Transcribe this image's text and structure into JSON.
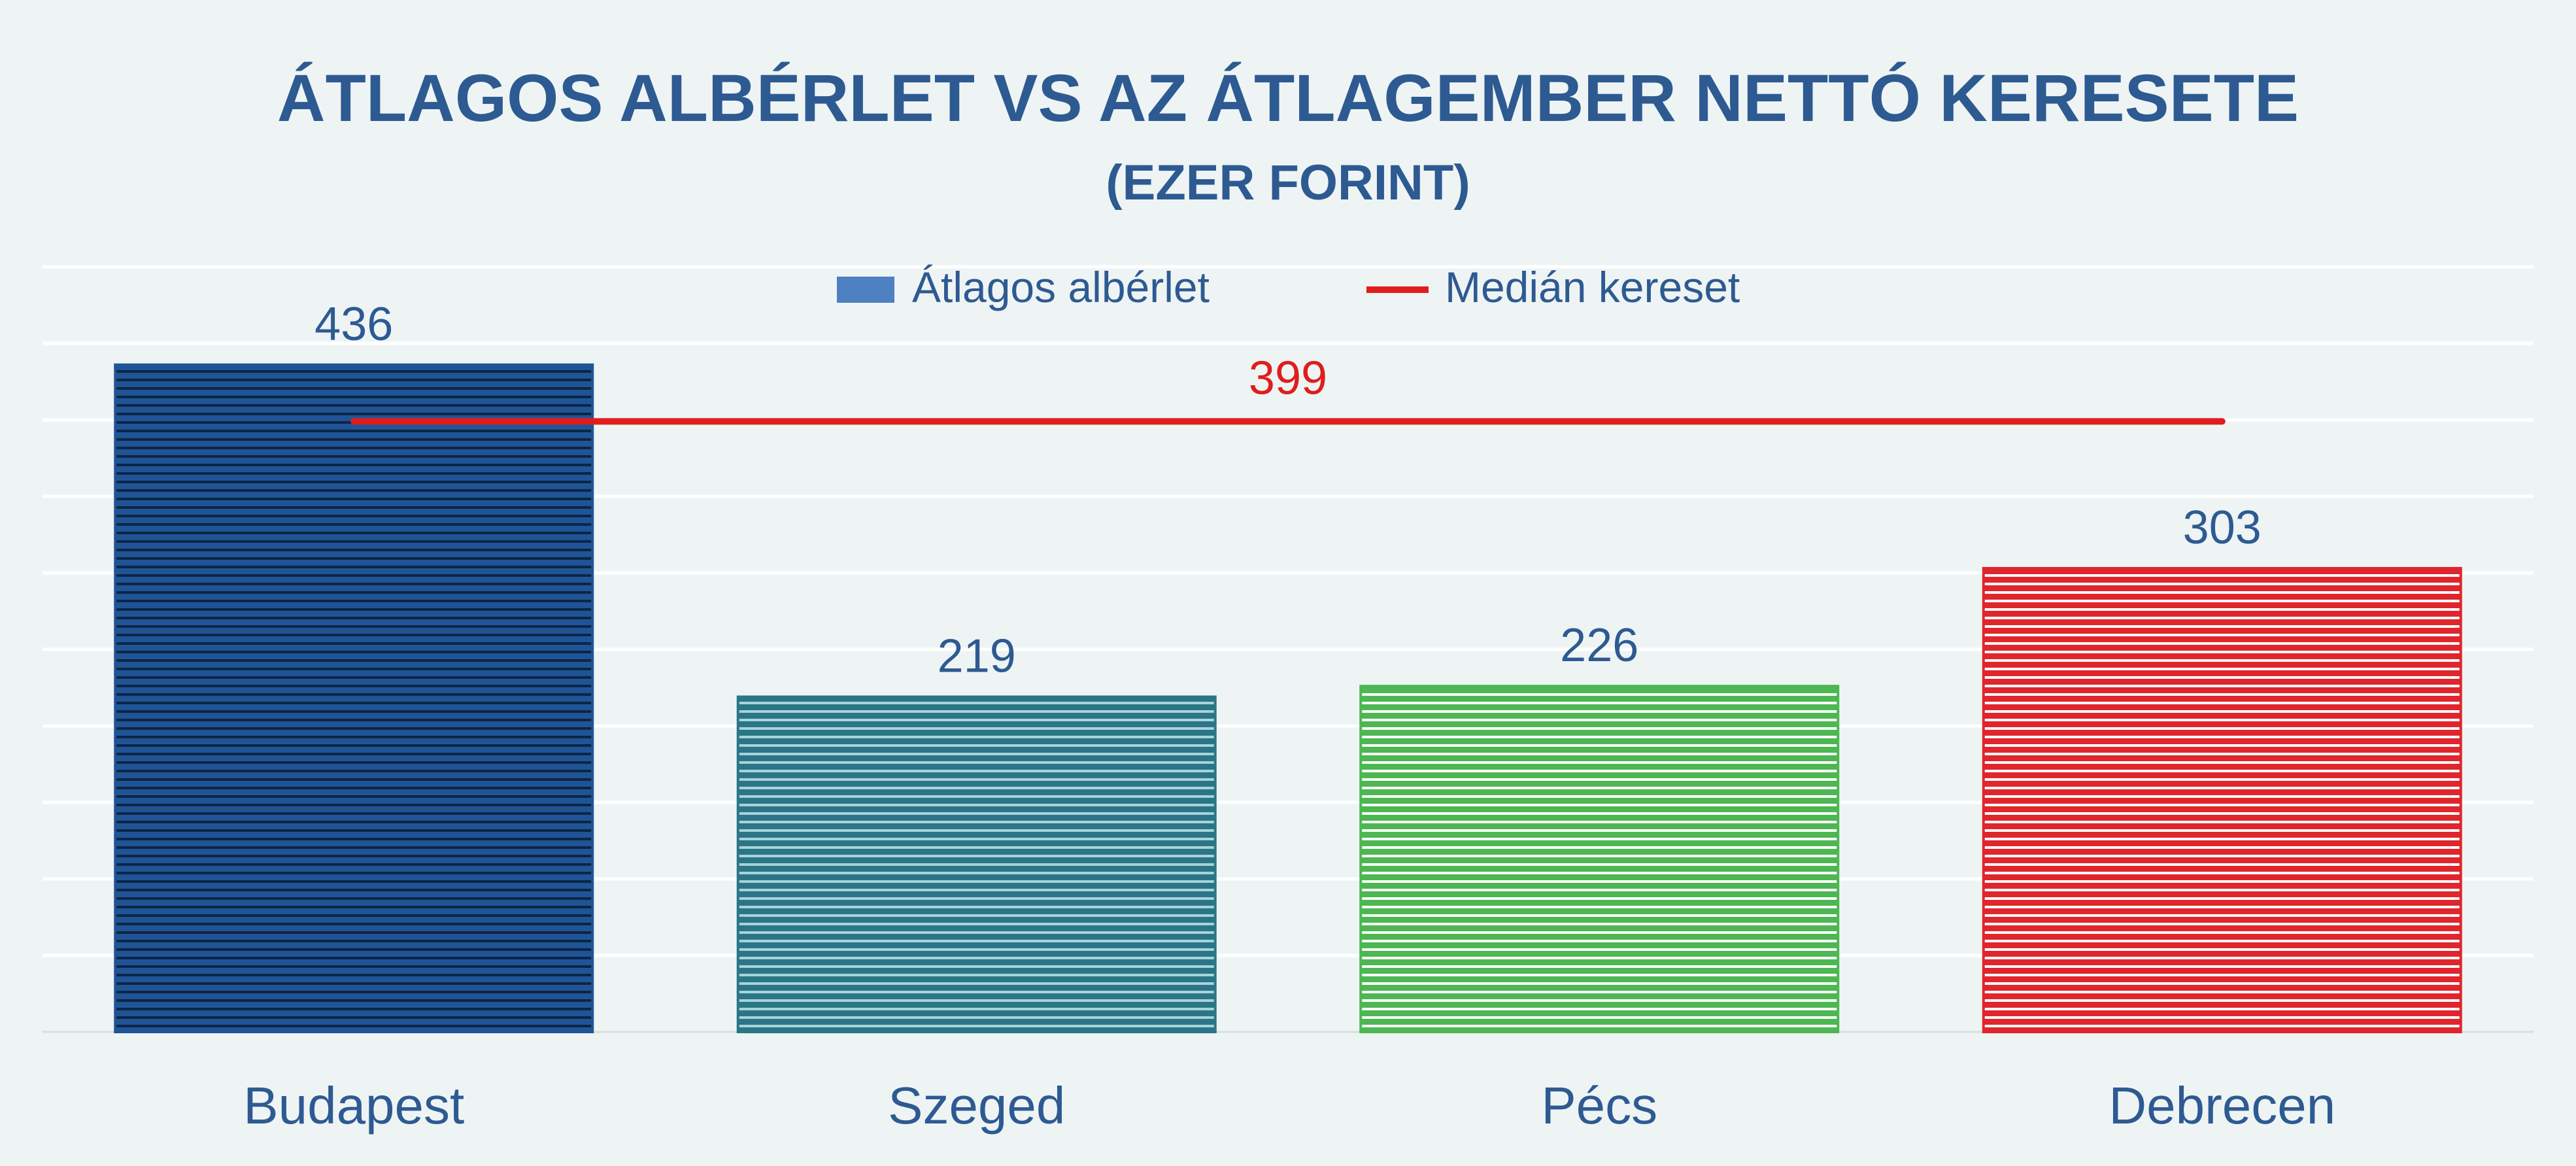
{
  "chart_data": {
    "type": "bar",
    "title": "ÁTLAGOS ALBÉRLET VS AZ ÁTLAGEMBER NETTÓ KERESETE",
    "subtitle": "(EZER FORINT)",
    "categories": [
      "Budapest",
      "Szeged",
      "Pécs",
      "Debrecen"
    ],
    "series": [
      {
        "name": "Átlagos albérlet",
        "values": [
          436,
          219,
          226,
          303
        ]
      }
    ],
    "reference_line": {
      "name": "Medián kereset",
      "value": 399,
      "label": "399"
    },
    "ylim": [
      0,
      500
    ],
    "grid": true,
    "legend": "top-center",
    "colors": {
      "bars": [
        "#1f5597",
        "#2b7686",
        "#4db752",
        "#e0252d"
      ],
      "bar_stripes": [
        "#0e2545",
        "#a8d3dc",
        "#ffffff",
        "#ffffff"
      ],
      "legend_swatch": "#4f80c1",
      "median_line": "#e01d1d",
      "text": "#2e5a92",
      "grid": "#ffffff"
    }
  }
}
